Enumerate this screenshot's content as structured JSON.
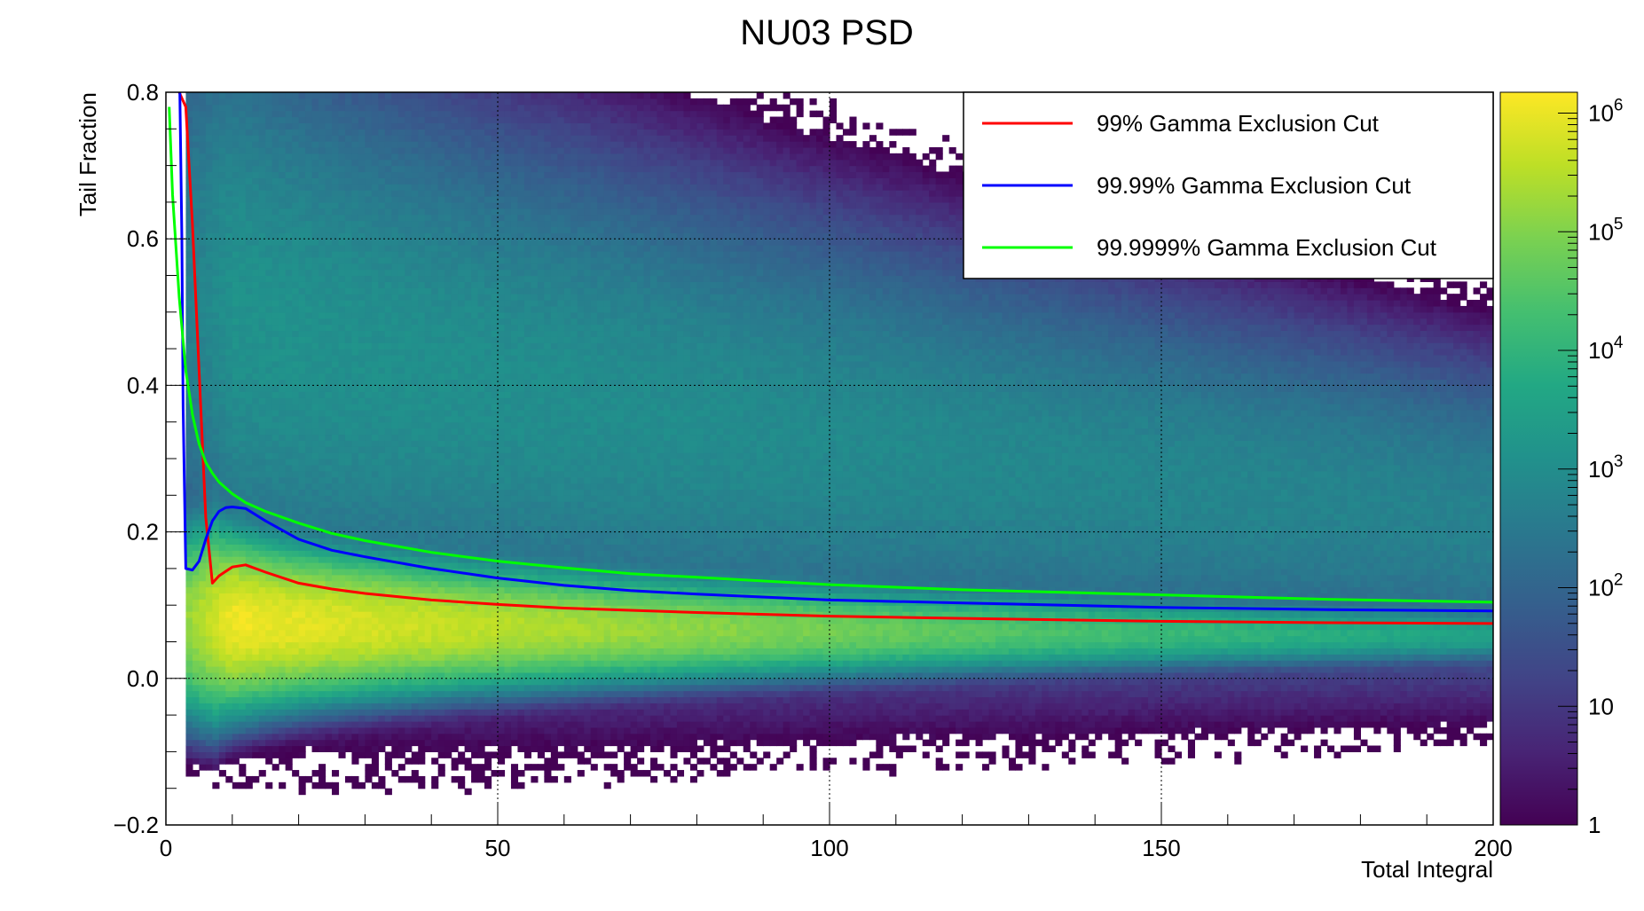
{
  "chart_data": {
    "type": "heatmap",
    "title": "NU03 PSD",
    "xlabel": "Total Integral",
    "ylabel": "Tail Fraction",
    "xlim": [
      0,
      200
    ],
    "ylim": [
      -0.2,
      0.8
    ],
    "x_ticks": [
      {
        "value": 0,
        "label": "0"
      },
      {
        "value": 50,
        "label": "50"
      },
      {
        "value": 100,
        "label": "100"
      },
      {
        "value": 150,
        "label": "150"
      },
      {
        "value": 200,
        "label": "200"
      }
    ],
    "y_ticks": [
      {
        "value": -0.2,
        "label": "−0.2"
      },
      {
        "value": 0.0,
        "label": "0.0"
      },
      {
        "value": 0.2,
        "label": "0.2"
      },
      {
        "value": 0.4,
        "label": "0.4"
      },
      {
        "value": 0.6,
        "label": "0.6"
      },
      {
        "value": 0.8,
        "label": "0.8"
      }
    ],
    "grid": true,
    "colorbar": {
      "scale": "log",
      "range": [
        1,
        1500000
      ],
      "palette": "viridis",
      "labels": [
        {
          "value": 1,
          "label": "1"
        },
        {
          "value": 10,
          "label": "10"
        },
        {
          "value": 100,
          "label": "10",
          "exp": "2"
        },
        {
          "value": 1000,
          "label": "10",
          "exp": "3"
        },
        {
          "value": 10000,
          "label": "10",
          "exp": "4"
        },
        {
          "value": 100000,
          "label": "10",
          "exp": "5"
        },
        {
          "value": 1000000,
          "label": "10",
          "exp": "6"
        }
      ]
    },
    "density_populations": [
      {
        "component": "gamma band",
        "y_center": [
          0.08,
          0.06
        ],
        "y_width": [
          0.04,
          0.012
        ],
        "peak_log10_count": [
          6.1,
          3.5
        ]
      },
      {
        "component": "neutron band",
        "y_center": [
          0.52,
          0.22
        ],
        "y_width": [
          0.12,
          0.06
        ],
        "peak_log10_count": [
          3.1,
          2.7
        ]
      }
    ],
    "legend_position": "top-right",
    "series": [
      {
        "name": "99% Gamma Exclusion Cut",
        "color": "#ff0000",
        "x": [
          2,
          3,
          4,
          5,
          6,
          7,
          8,
          10,
          12,
          15,
          20,
          25,
          30,
          40,
          50,
          60,
          70,
          80,
          100,
          120,
          150,
          175,
          200
        ],
        "y": [
          0.8,
          0.78,
          0.62,
          0.42,
          0.22,
          0.13,
          0.14,
          0.152,
          0.155,
          0.145,
          0.13,
          0.122,
          0.116,
          0.107,
          0.101,
          0.096,
          0.093,
          0.09,
          0.085,
          0.082,
          0.078,
          0.076,
          0.075
        ]
      },
      {
        "name": "99.99% Gamma Exclusion Cut",
        "color": "#0000ff",
        "x": [
          2.1,
          2.4,
          2.6,
          3,
          4,
          5,
          6,
          7,
          8,
          9,
          10,
          12,
          15,
          20,
          25,
          30,
          40,
          50,
          60,
          70,
          80,
          100,
          120,
          150,
          175,
          200
        ],
        "y": [
          0.8,
          0.6,
          0.37,
          0.15,
          0.148,
          0.16,
          0.19,
          0.215,
          0.228,
          0.233,
          0.234,
          0.232,
          0.215,
          0.19,
          0.175,
          0.166,
          0.15,
          0.137,
          0.127,
          0.12,
          0.115,
          0.107,
          0.103,
          0.097,
          0.094,
          0.092
        ]
      },
      {
        "name": "99.9999% Gamma Exclusion Cut",
        "color": "#00ff00",
        "x": [
          0.5,
          1,
          2,
          3,
          4,
          5,
          6,
          7,
          8,
          10,
          12,
          15,
          20,
          25,
          30,
          40,
          50,
          60,
          70,
          80,
          100,
          120,
          150,
          175,
          200
        ],
        "y": [
          0.78,
          0.66,
          0.52,
          0.42,
          0.36,
          0.32,
          0.295,
          0.28,
          0.268,
          0.252,
          0.24,
          0.228,
          0.212,
          0.198,
          0.188,
          0.172,
          0.16,
          0.151,
          0.143,
          0.138,
          0.128,
          0.121,
          0.114,
          0.108,
          0.104
        ]
      }
    ]
  }
}
